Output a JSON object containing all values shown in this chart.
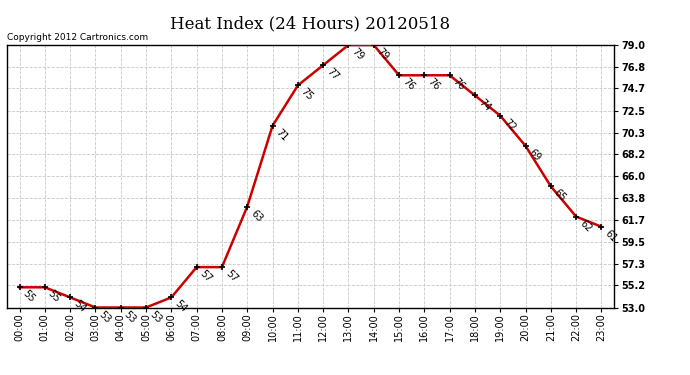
{
  "title": "Heat Index (24 Hours) 20120518",
  "copyright": "Copyright 2012 Cartronics.com",
  "hours": [
    "00:00",
    "01:00",
    "02:00",
    "03:00",
    "04:00",
    "05:00",
    "06:00",
    "07:00",
    "08:00",
    "09:00",
    "10:00",
    "11:00",
    "12:00",
    "13:00",
    "14:00",
    "15:00",
    "16:00",
    "17:00",
    "18:00",
    "19:00",
    "20:00",
    "21:00",
    "22:00",
    "23:00"
  ],
  "values": [
    55,
    55,
    54,
    53,
    53,
    53,
    54,
    57,
    57,
    63,
    71,
    75,
    77,
    79,
    79,
    76,
    76,
    76,
    74,
    72,
    69,
    65,
    62,
    61
  ],
  "line_color": "#cc0000",
  "marker_color": "#000000",
  "bg_color": "#ffffff",
  "grid_color": "#c8c8c8",
  "ylim_min": 53.0,
  "ylim_max": 79.0,
  "yticks": [
    53.0,
    55.2,
    57.3,
    59.5,
    61.7,
    63.8,
    66.0,
    68.2,
    70.3,
    72.5,
    74.7,
    76.8,
    79.0
  ],
  "title_fontsize": 12,
  "label_fontsize": 7,
  "tick_fontsize": 7,
  "copyright_fontsize": 6.5
}
